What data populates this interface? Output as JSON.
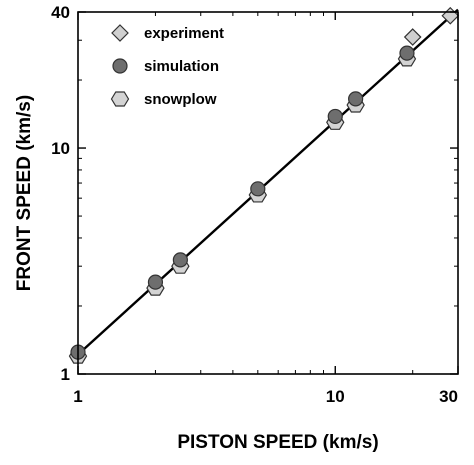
{
  "chart_data": {
    "type": "scatter",
    "xlabel": "PISTON SPEED (km/s)",
    "ylabel": "FRONT SPEED (km/s)",
    "xscale": "log",
    "yscale": "log",
    "xlim": [
      1,
      30
    ],
    "ylim": [
      1,
      40
    ],
    "xticks": [
      1,
      10,
      30
    ],
    "xtick_labels": [
      "1",
      "10",
      "30"
    ],
    "yticks": [
      1,
      10,
      40
    ],
    "ytick_labels": [
      "1",
      "10",
      "40"
    ],
    "grid": false,
    "legend_position": "top-left",
    "series": [
      {
        "name": "experiment",
        "marker": "diamond",
        "color": "#d0d0d0",
        "points": [
          [
            20,
            31
          ],
          [
            28,
            38.5
          ]
        ]
      },
      {
        "name": "simulation",
        "marker": "circle",
        "color": "#6e6e6e",
        "points": [
          [
            1,
            1.25
          ],
          [
            2,
            2.55
          ],
          [
            2.5,
            3.2
          ],
          [
            5,
            6.6
          ],
          [
            10,
            13.8
          ],
          [
            12,
            16.5
          ],
          [
            19,
            26.3
          ]
        ]
      },
      {
        "name": "snowplow",
        "marker": "hexagon",
        "color": "#d4d4d4",
        "points": [
          [
            1,
            1.2
          ],
          [
            2,
            2.4
          ],
          [
            2.5,
            3.0
          ],
          [
            5,
            6.2
          ],
          [
            10,
            13.0
          ],
          [
            12,
            15.5
          ],
          [
            19,
            24.8
          ]
        ]
      }
    ],
    "fit_line": {
      "style": "solid",
      "color": "#000000",
      "points": [
        [
          1,
          1.22
        ],
        [
          30,
          41
        ]
      ]
    }
  }
}
